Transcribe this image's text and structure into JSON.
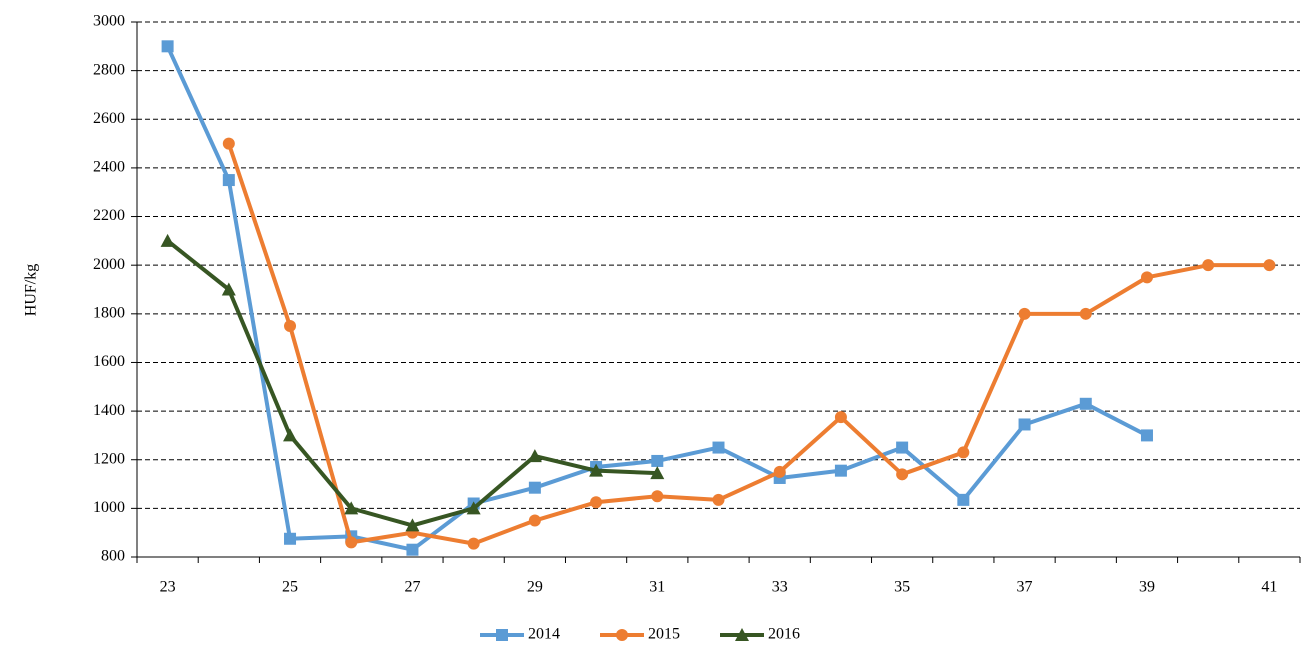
{
  "chart_data": {
    "type": "line",
    "y_label": "HUF/kg",
    "categories": [
      "23",
      null,
      "25",
      null,
      "27",
      null,
      "29",
      null,
      "31",
      null,
      "33",
      null,
      "35",
      null,
      "37",
      null,
      "39",
      null,
      "41"
    ],
    "series": [
      {
        "name": "2014",
        "color": "#5b9bd5",
        "marker": "square",
        "values": [
          2900,
          2350,
          875,
          885,
          830,
          1020,
          1085,
          1170,
          1195,
          1250,
          1125,
          1155,
          1250,
          1035,
          1345,
          1430,
          1300,
          null,
          null
        ]
      },
      {
        "name": "2015",
        "color": "#ed7d31",
        "marker": "circle",
        "values": [
          null,
          2500,
          1750,
          860,
          900,
          855,
          950,
          1025,
          1050,
          1035,
          1150,
          1375,
          1140,
          1230,
          1800,
          1800,
          1950,
          2000,
          2000
        ]
      },
      {
        "name": "2016",
        "color": "#375623",
        "marker": "triangle",
        "values": [
          2100,
          1900,
          1300,
          1000,
          930,
          1000,
          1215,
          1155,
          1145,
          null,
          null,
          null,
          null,
          null,
          null,
          null,
          null,
          null,
          null
        ]
      }
    ],
    "ylim": [
      800,
      3000
    ],
    "yticks": [
      800,
      1000,
      1200,
      1400,
      1600,
      1800,
      2000,
      2200,
      2400,
      2600,
      2800,
      3000
    ],
    "grid": true,
    "legend": "bottom"
  }
}
